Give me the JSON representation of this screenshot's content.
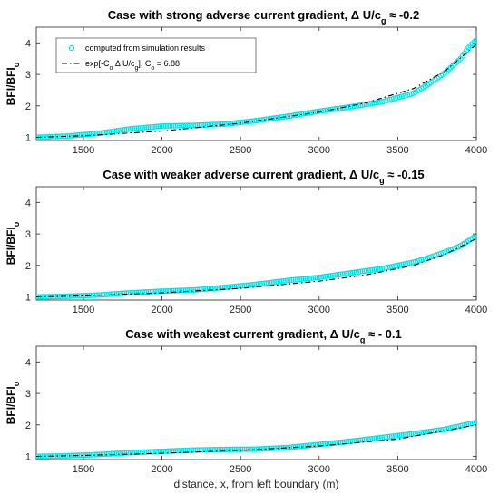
{
  "chart_data": [
    {
      "type": "scatter",
      "title": "Case with strong adverse current gradient, Δ U/c_g ≈ -0.2",
      "title_parts": {
        "lead": "Case with strong adverse current gradient, Δ U/c",
        "sub": "g",
        "tail": " ≈ -0.2"
      },
      "xlabel": "",
      "ylabel": "BFI/BFI_o",
      "xlim": [
        1200,
        4000
      ],
      "ylim": [
        0.9,
        4.5
      ],
      "xticks": [
        1500,
        2000,
        2500,
        3000,
        3500,
        4000
      ],
      "yticks": [
        1,
        2,
        3,
        4
      ],
      "grid": false,
      "legend": {
        "placement": "top-left",
        "entries": [
          {
            "label": "computed from simulation results",
            "marker": "o",
            "color": "#00e5e5"
          },
          {
            "label_parts": [
              "exp[-C",
              "o",
              " Δ U/c",
              "g",
              "], C",
              "o",
              " = 6.88"
            ],
            "style": "dash-dot",
            "color": "#000000"
          }
        ]
      },
      "series": [
        {
          "name": "computed from simulation results",
          "kind": "markers",
          "color": "#00e5e5",
          "x": [
            1200,
            1400,
            1600,
            1800,
            2000,
            2200,
            2400,
            2600,
            2800,
            3000,
            3200,
            3400,
            3600,
            3700,
            3800,
            3900,
            3950,
            4000
          ],
          "y": [
            1.0,
            1.04,
            1.13,
            1.27,
            1.36,
            1.38,
            1.42,
            1.53,
            1.67,
            1.83,
            1.97,
            2.13,
            2.4,
            2.7,
            3.05,
            3.5,
            3.85,
            4.1
          ]
        },
        {
          "name": "exp[-C_o Δ U/c_g], C_o = 6.88",
          "kind": "line",
          "style": "dash-dot",
          "color": "#000000",
          "x": [
            1200,
            1500,
            2000,
            2500,
            3000,
            3300,
            3600,
            3800,
            4000
          ],
          "y": [
            1.0,
            1.05,
            1.2,
            1.45,
            1.8,
            2.1,
            2.55,
            3.1,
            3.95
          ]
        }
      ]
    },
    {
      "type": "scatter",
      "title": "Case with weaker adverse current gradient, Δ U/c_g ≈ -0.15",
      "title_parts": {
        "lead": "Case with weaker adverse current gradient, Δ U/c",
        "sub": "g",
        "tail": " ≈ -0.15"
      },
      "xlabel": "",
      "ylabel": "BFI/BFI_o",
      "xlim": [
        1200,
        4000
      ],
      "ylim": [
        0.9,
        4.5
      ],
      "xticks": [
        1500,
        2000,
        2500,
        3000,
        3500,
        4000
      ],
      "yticks": [
        1,
        2,
        3,
        4
      ],
      "grid": false,
      "series": [
        {
          "name": "computed from simulation results",
          "kind": "markers",
          "color": "#00e5e5",
          "x": [
            1200,
            1400,
            1600,
            1800,
            2000,
            2200,
            2400,
            2600,
            2800,
            3000,
            3200,
            3400,
            3600,
            3700,
            3800,
            3900,
            3950,
            4000
          ],
          "y": [
            1.0,
            1.02,
            1.06,
            1.13,
            1.18,
            1.22,
            1.3,
            1.4,
            1.52,
            1.62,
            1.76,
            1.9,
            2.1,
            2.25,
            2.42,
            2.62,
            2.78,
            2.95
          ]
        },
        {
          "name": "exp[-C_o Δ U/c_g], C_o = 6.88",
          "kind": "line",
          "style": "dash-dot",
          "color": "#000000",
          "x": [
            1200,
            1500,
            2000,
            2500,
            3000,
            3300,
            3600,
            3800,
            4000
          ],
          "y": [
            1.0,
            1.03,
            1.13,
            1.27,
            1.5,
            1.7,
            2.0,
            2.35,
            2.85
          ]
        }
      ]
    },
    {
      "type": "scatter",
      "title": "Case with weakest current gradient, Δ U/c_g ≈ - 0.1",
      "title_parts": {
        "lead": "Case with weakest current gradient, Δ U/c",
        "sub": "g",
        "tail": " ≈ - 0.1"
      },
      "xlabel": "distance, x, from left boundary (m)",
      "ylabel": "BFI/BFI_o",
      "xlim": [
        1200,
        4000
      ],
      "ylim": [
        0.9,
        4.5
      ],
      "xticks": [
        1500,
        2000,
        2500,
        3000,
        3500,
        4000
      ],
      "yticks": [
        1,
        2,
        3,
        4
      ],
      "grid": false,
      "series": [
        {
          "name": "computed from simulation results",
          "kind": "markers",
          "color": "#00e5e5",
          "x": [
            1200,
            1400,
            1600,
            1800,
            2000,
            2200,
            2400,
            2600,
            2800,
            3000,
            3200,
            3400,
            3600,
            3800,
            4000
          ],
          "y": [
            1.0,
            1.02,
            1.06,
            1.12,
            1.16,
            1.2,
            1.22,
            1.23,
            1.28,
            1.38,
            1.48,
            1.6,
            1.72,
            1.86,
            2.08
          ]
        },
        {
          "name": "exp[-C_o Δ U/c_g], C_o = 6.88",
          "kind": "line",
          "style": "dash-dot",
          "color": "#000000",
          "x": [
            1200,
            1500,
            2000,
            2500,
            3000,
            3500,
            4000
          ],
          "y": [
            1.0,
            1.03,
            1.1,
            1.19,
            1.33,
            1.55,
            2.0
          ]
        }
      ]
    }
  ]
}
